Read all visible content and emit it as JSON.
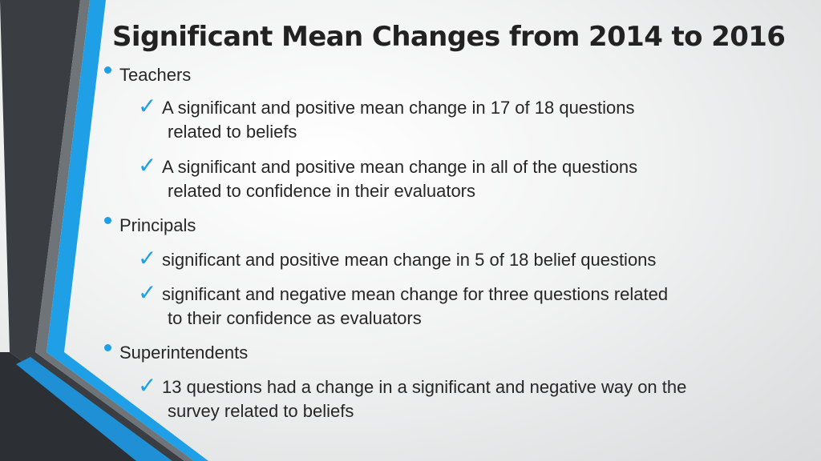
{
  "title": "Significant Mean Changes from 2014 to 2016",
  "colors": {
    "accent": "#1fa0e6",
    "dark_stripe": "#3b3f44"
  },
  "groups": [
    {
      "label": "Teachers",
      "items": [
        {
          "line1": "A significant and positive  mean change in 17 of 18 questions",
          "line2": "related to beliefs"
        },
        {
          "line1": "A significant and positive mean change in all of the questions",
          "line2": "related to confidence in their evaluators"
        }
      ]
    },
    {
      "label": "Principals",
      "items": [
        {
          "line1": "significant and positive mean change in 5 of 18 belief questions",
          "line2": ""
        },
        {
          "line1": "significant and negative mean change for three questions related",
          "line2": "to their confidence as evaluators"
        }
      ]
    },
    {
      "label": "Superintendents",
      "items": [
        {
          "line1": "13 questions had a change in a significant and negative way on the",
          "line2": "survey related to beliefs"
        }
      ]
    }
  ],
  "check_glyph": "✓",
  "icons": {
    "bullet": "bullet-dot-icon",
    "check": "check-mark-icon"
  }
}
